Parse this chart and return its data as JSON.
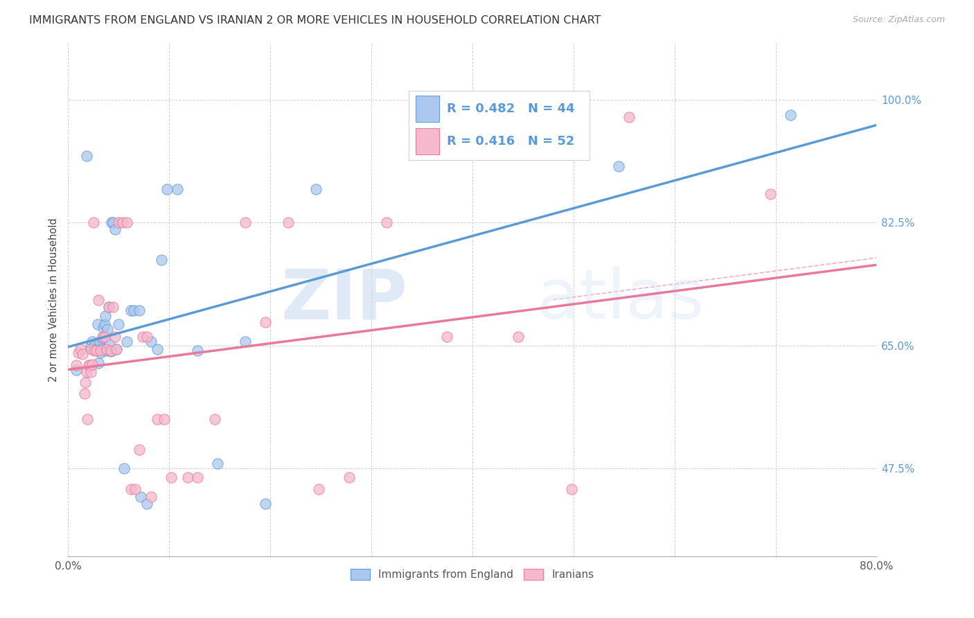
{
  "title": "IMMIGRANTS FROM ENGLAND VS IRANIAN 2 OR MORE VEHICLES IN HOUSEHOLD CORRELATION CHART",
  "source": "Source: ZipAtlas.com",
  "ylabel": "2 or more Vehicles in Household",
  "xlim": [
    0.0,
    0.8
  ],
  "ylim": [
    0.35,
    1.08
  ],
  "xticks": [
    0.0,
    0.1,
    0.2,
    0.3,
    0.4,
    0.5,
    0.6,
    0.7,
    0.8
  ],
  "xticklabels": [
    "0.0%",
    "",
    "",
    "",
    "",
    "",
    "",
    "",
    "80.0%"
  ],
  "ytick_positions": [
    0.475,
    0.65,
    0.825,
    1.0
  ],
  "ytick_labels": [
    "47.5%",
    "65.0%",
    "82.5%",
    "100.0%"
  ],
  "watermark_zip": "ZIP",
  "watermark_atlas": "atlas",
  "legend_r1": "0.482",
  "legend_n1": "44",
  "legend_r2": "0.416",
  "legend_n2": "52",
  "legend_label1": "Immigrants from England",
  "legend_label2": "Iranians",
  "color_england": "#adc8ee",
  "color_iran": "#f5b8cc",
  "line_color_england": "#5b9bd5",
  "line_color_iran": "#e8799a",
  "dashed_line_color": "#e8799a",
  "england_x": [
    0.008,
    0.018,
    0.022,
    0.024,
    0.026,
    0.028,
    0.029,
    0.03,
    0.031,
    0.032,
    0.033,
    0.034,
    0.035,
    0.036,
    0.037,
    0.038,
    0.039,
    0.04,
    0.041,
    0.042,
    0.043,
    0.044,
    0.046,
    0.048,
    0.05,
    0.055,
    0.058,
    0.062,
    0.065,
    0.07,
    0.072,
    0.078,
    0.082,
    0.088,
    0.092,
    0.098,
    0.108,
    0.128,
    0.148,
    0.175,
    0.195,
    0.245,
    0.545,
    0.715
  ],
  "england_y": [
    0.615,
    0.92,
    0.65,
    0.655,
    0.65,
    0.645,
    0.68,
    0.625,
    0.655,
    0.64,
    0.645,
    0.66,
    0.675,
    0.68,
    0.692,
    0.643,
    0.673,
    0.705,
    0.652,
    0.642,
    0.825,
    0.825,
    0.815,
    0.645,
    0.68,
    0.475,
    0.655,
    0.7,
    0.7,
    0.7,
    0.435,
    0.425,
    0.655,
    0.645,
    0.772,
    0.872,
    0.872,
    0.643,
    0.482,
    0.655,
    0.425,
    0.872,
    0.905,
    0.978
  ],
  "iran_x": [
    0.008,
    0.01,
    0.012,
    0.014,
    0.016,
    0.017,
    0.018,
    0.019,
    0.02,
    0.021,
    0.022,
    0.023,
    0.024,
    0.025,
    0.026,
    0.028,
    0.03,
    0.032,
    0.034,
    0.036,
    0.038,
    0.04,
    0.042,
    0.044,
    0.046,
    0.048,
    0.05,
    0.054,
    0.058,
    0.062,
    0.066,
    0.07,
    0.074,
    0.078,
    0.082,
    0.088,
    0.095,
    0.102,
    0.118,
    0.128,
    0.145,
    0.175,
    0.195,
    0.218,
    0.248,
    0.278,
    0.315,
    0.375,
    0.445,
    0.498,
    0.555,
    0.695
  ],
  "iran_y": [
    0.622,
    0.64,
    0.645,
    0.638,
    0.582,
    0.597,
    0.612,
    0.545,
    0.622,
    0.622,
    0.612,
    0.645,
    0.623,
    0.825,
    0.643,
    0.643,
    0.715,
    0.643,
    0.662,
    0.662,
    0.645,
    0.705,
    0.643,
    0.705,
    0.662,
    0.645,
    0.825,
    0.825,
    0.825,
    0.445,
    0.445,
    0.502,
    0.662,
    0.662,
    0.435,
    0.545,
    0.545,
    0.462,
    0.462,
    0.462,
    0.545,
    0.825,
    0.683,
    0.825,
    0.445,
    0.462,
    0.825,
    0.662,
    0.662,
    0.445,
    0.975,
    0.865
  ]
}
